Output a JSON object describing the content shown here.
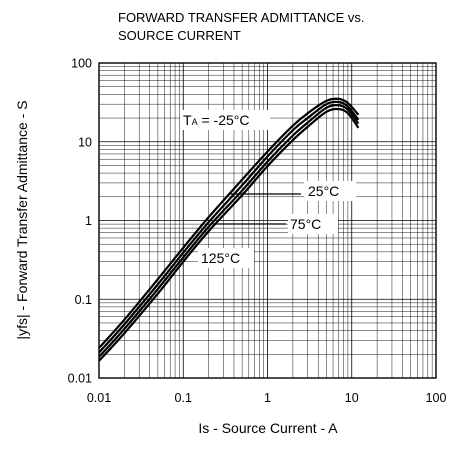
{
  "chart_data": {
    "type": "line",
    "title_lines": [
      "FORWARD TRANSFER ADMITTANCE vs.",
      "SOURCE CURRENT"
    ],
    "xlabel": "Is - Source Current - A",
    "ylabel": "|yfs| - Forward Transfer Admittance - S",
    "x_scale": "log",
    "y_scale": "log",
    "xlim": [
      0.01,
      100
    ],
    "ylim": [
      0.01,
      100
    ],
    "grid": true,
    "x_ticks": [
      "0.01",
      "0.1",
      "1",
      "10",
      "100"
    ],
    "y_ticks": [
      "0.01",
      "0.1",
      "1",
      "10",
      "100"
    ],
    "series": [
      {
        "name": "TA = -25°C",
        "x": [
          0.01,
          0.02,
          0.05,
          0.1,
          0.2,
          0.5,
          1,
          2,
          3,
          5,
          7,
          9,
          12
        ],
        "y": [
          0.024,
          0.055,
          0.18,
          0.45,
          1.1,
          3.3,
          7.5,
          16,
          23,
          33,
          35,
          31,
          22
        ]
      },
      {
        "name": "25°C",
        "x": [
          0.01,
          0.02,
          0.05,
          0.1,
          0.2,
          0.5,
          1,
          2,
          3,
          5,
          7,
          9,
          12
        ],
        "y": [
          0.021,
          0.048,
          0.155,
          0.39,
          0.95,
          2.8,
          6.5,
          14,
          20,
          30,
          32,
          28,
          19
        ]
      },
      {
        "name": "75°C",
        "x": [
          0.01,
          0.02,
          0.05,
          0.1,
          0.2,
          0.5,
          1,
          2,
          3,
          5,
          7,
          9,
          12
        ],
        "y": [
          0.0185,
          0.042,
          0.135,
          0.34,
          0.83,
          2.4,
          5.6,
          12,
          17.5,
          27,
          29,
          25.5,
          17
        ]
      },
      {
        "name": "125°C",
        "x": [
          0.01,
          0.02,
          0.05,
          0.1,
          0.2,
          0.5,
          1,
          2,
          3,
          5,
          7,
          9,
          12
        ],
        "y": [
          0.0165,
          0.037,
          0.118,
          0.3,
          0.73,
          2.1,
          4.9,
          10.5,
          15.5,
          24,
          26,
          23,
          15
        ]
      }
    ],
    "annotations": [
      {
        "text_main": "T",
        "text_sub": "A",
        "text_rest": " = -25°C"
      },
      {
        "text_main": "25°C"
      },
      {
        "text_main": "75°C"
      },
      {
        "text_main": "125°C"
      }
    ]
  }
}
